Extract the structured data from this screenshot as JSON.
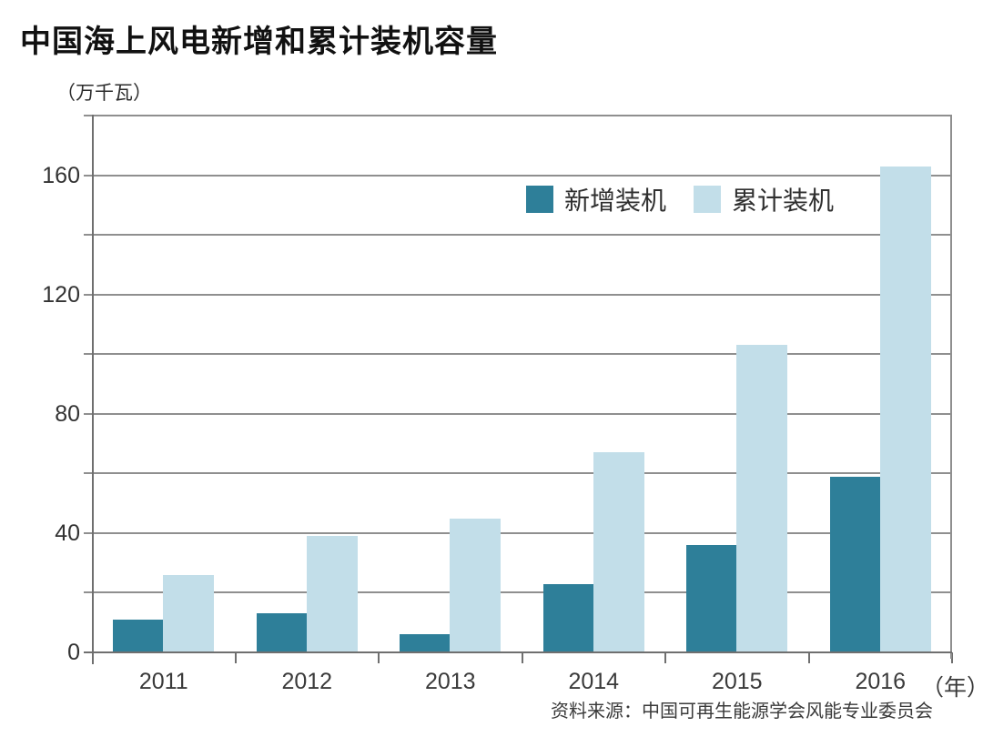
{
  "title": "中国海上风电新增和累计装机容量",
  "unit_label": "（万千瓦）",
  "x_axis_suffix": "（年）",
  "source": "资料来源：中国可再生能源学会风能专业委员会",
  "colors": {
    "new_series": "#2E7F99",
    "cumulative_series": "#C2DEE9",
    "gridline": "#8F8F8F",
    "axis": "#6F6F6F"
  },
  "chart_data": {
    "type": "bar",
    "title": "中国海上风电新增和累计装机容量",
    "unit": "万千瓦",
    "categories": [
      "2011",
      "2012",
      "2013",
      "2014",
      "2015",
      "2016"
    ],
    "series": [
      {
        "name": "新增装机",
        "values": [
          11,
          13,
          6,
          23,
          36,
          59
        ]
      },
      {
        "name": "累计装机",
        "values": [
          26,
          39,
          45,
          67,
          103,
          163
        ]
      }
    ],
    "xlabel": "年",
    "ylabel": "万千瓦",
    "ylim": [
      0,
      180
    ],
    "ytick_step": 20,
    "yticks_labeled": [
      0,
      40,
      80,
      120,
      160
    ],
    "grid": true,
    "legend_position": "inside-top-right"
  }
}
